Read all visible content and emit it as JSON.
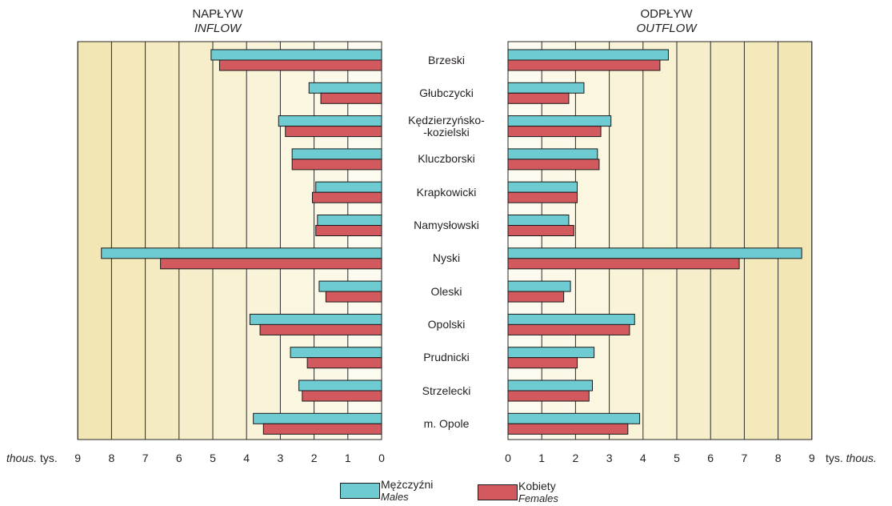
{
  "chart_data": {
    "type": "bar",
    "orientation": "horizontal",
    "layout": "butterfly",
    "colors": {
      "males": "#6dcbd1",
      "females": "#d2595d",
      "band_dark": "#f2e6b4",
      "band_light": "#fdfbef"
    },
    "categories": [
      "Brzeski",
      "Głubczycki",
      "Kędzierzyńsko-\n-kozielski",
      "Kluczborski",
      "Krapkowicki",
      "Namysłowski",
      "Nyski",
      "Oleski",
      "Opolski",
      "Prudnicki",
      "Strzelecki",
      "m. Opole"
    ],
    "panels": [
      {
        "side": "left",
        "title": "NAPŁYW",
        "title_en": "INFLOW",
        "xlim": [
          0,
          9
        ],
        "ticks": [
          "9",
          "8",
          "7",
          "6",
          "5",
          "4",
          "3",
          "2",
          "1",
          "0"
        ],
        "series": [
          {
            "key": "males",
            "values": [
              5.05,
              2.15,
              3.05,
              2.65,
              1.95,
              1.9,
              8.3,
              1.85,
              3.9,
              2.7,
              2.45,
              3.8
            ]
          },
          {
            "key": "females",
            "values": [
              4.8,
              1.8,
              2.85,
              2.65,
              2.05,
              1.95,
              6.55,
              1.65,
              3.6,
              2.2,
              2.35,
              3.5
            ]
          }
        ]
      },
      {
        "side": "right",
        "title": "ODPŁYW",
        "title_en": "OUTFLOW",
        "xlim": [
          0,
          9
        ],
        "ticks": [
          "0",
          "1",
          "2",
          "3",
          "4",
          "5",
          "6",
          "7",
          "8",
          "9"
        ],
        "series": [
          {
            "key": "males",
            "values": [
              4.75,
              2.25,
              3.05,
              2.65,
              2.05,
              1.8,
              8.7,
              1.85,
              3.75,
              2.55,
              2.5,
              3.9
            ]
          },
          {
            "key": "females",
            "values": [
              4.5,
              1.8,
              2.75,
              2.7,
              2.05,
              1.95,
              6.85,
              1.65,
              3.6,
              2.05,
              2.4,
              3.55
            ]
          }
        ]
      }
    ],
    "unit_left": {
      "en": "thous.",
      "pl": "tys."
    },
    "unit_right": {
      "pl": "tys.",
      "en": "thous."
    },
    "legend": [
      {
        "key": "males",
        "label": "Mężczyźni",
        "label_en": "Males"
      },
      {
        "key": "females",
        "label": "Kobiety",
        "label_en": "Females"
      }
    ]
  }
}
